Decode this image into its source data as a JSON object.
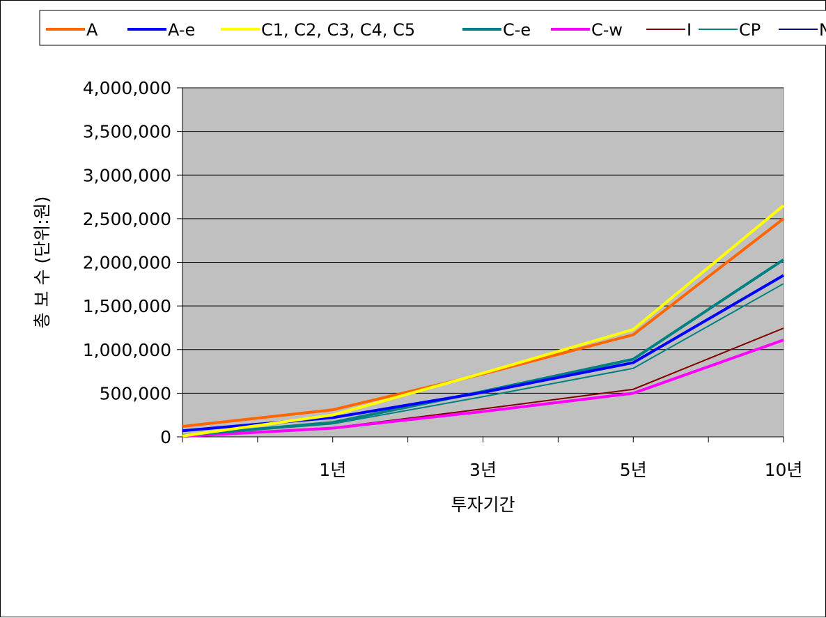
{
  "chart_data": {
    "type": "line",
    "x": [
      "",
      "1년",
      "3년",
      "5년",
      "10년"
    ],
    "xlabel": "투자기간",
    "ylabel": "총 보 수  (단위:원)",
    "ylim": [
      0,
      4000000
    ],
    "yticks": [
      0,
      500000,
      1000000,
      1500000,
      2000000,
      2500000,
      3000000,
      3500000,
      4000000
    ],
    "ytick_labels": [
      "0",
      "500,000",
      "1,000,000",
      "1,500,000",
      "2,000,000",
      "2,500,000",
      "3,000,000",
      "3,500,000",
      "4,000,000"
    ],
    "grid": true,
    "plot_background": "#c0c0c0",
    "legend_position": "top",
    "series": [
      {
        "name": "A",
        "color": "#ff6600",
        "width": 4,
        "values": [
          120000,
          310000,
          720000,
          1170000,
          2500000
        ]
      },
      {
        "name": "A-e",
        "color": "#0000ff",
        "width": 4,
        "values": [
          70000,
          220000,
          510000,
          850000,
          1850000
        ]
      },
      {
        "name": "C1, C2, C3, C4, C5",
        "color": "#ffff00",
        "width": 4,
        "values": [
          10000,
          250000,
          730000,
          1230000,
          2650000
        ]
      },
      {
        "name": "C-e",
        "color": "#008080",
        "width": 4,
        "values": [
          15000,
          165000,
          520000,
          890000,
          2030000
        ]
      },
      {
        "name": "C-w",
        "color": "#ff00ff",
        "width": 4,
        "values": [
          5000,
          100000,
          290000,
          500000,
          1110000
        ]
      },
      {
        "name": "I",
        "color": "#800000",
        "width": 2,
        "values": [
          8000,
          105000,
          320000,
          545000,
          1245000
        ]
      },
      {
        "name": "CP",
        "color": "#008080",
        "width": 2,
        "values": [
          12000,
          150000,
          460000,
          785000,
          1755000
        ]
      },
      {
        "name": "N",
        "color": "#000080",
        "width": 2,
        "values": [
          6000,
          100000,
          290000,
          500000,
          1110000
        ]
      }
    ]
  }
}
